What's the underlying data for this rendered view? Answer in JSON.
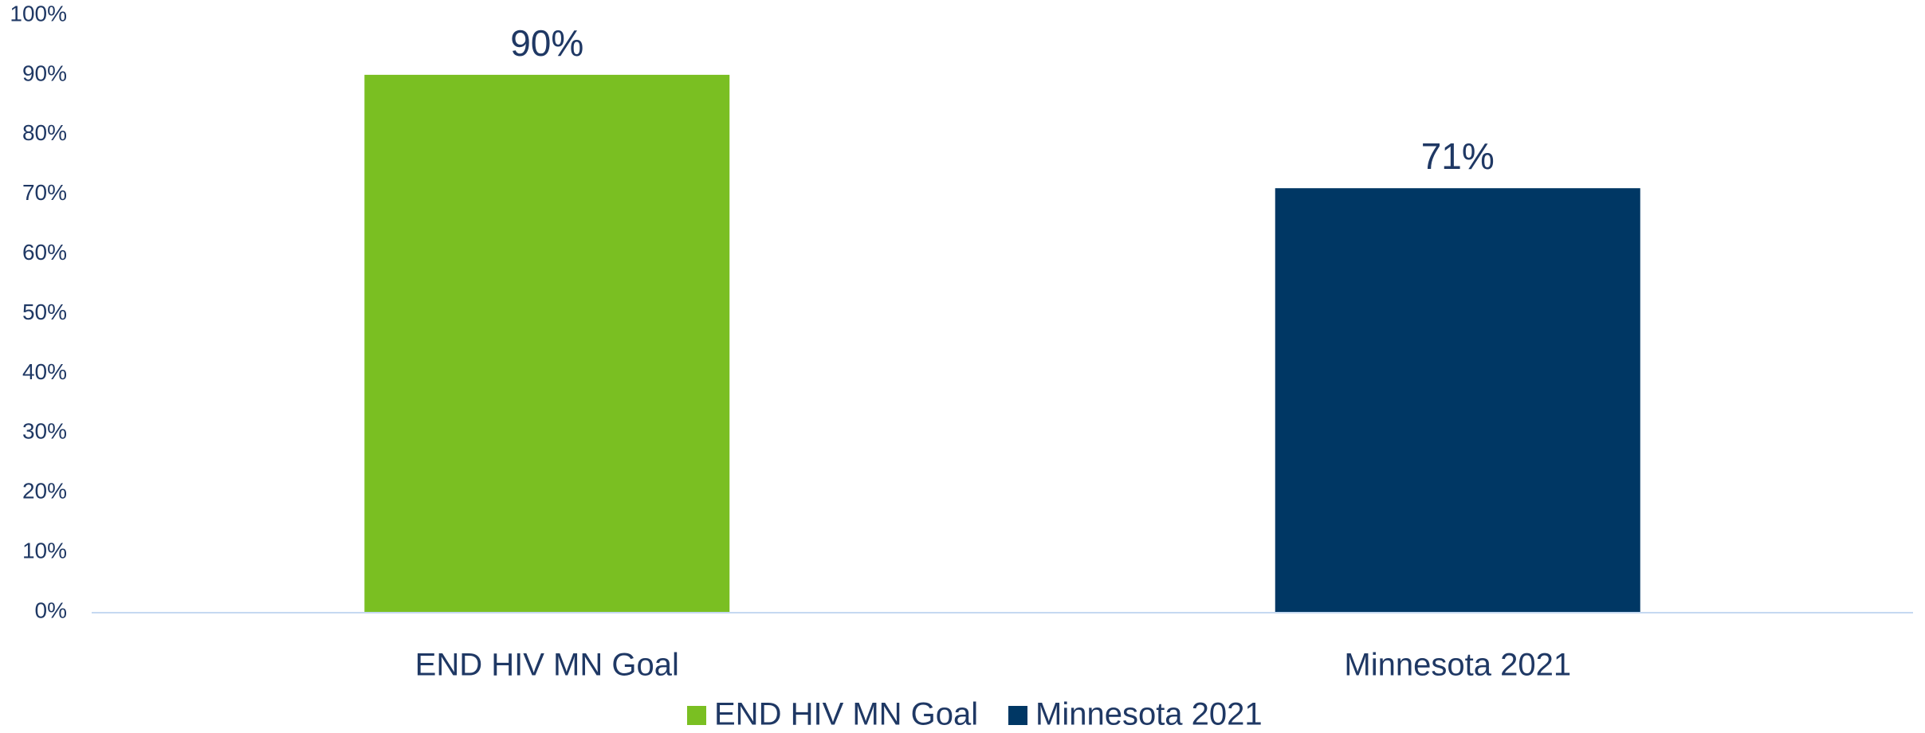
{
  "chart_data": {
    "type": "bar",
    "categories": [
      "END HIV MN Goal",
      "Minnesota 2021"
    ],
    "values": [
      90,
      71
    ],
    "value_labels": [
      "90%",
      "71%"
    ],
    "bar_colors": [
      "#7ABF22",
      "#003764"
    ],
    "title": "",
    "xlabel": "",
    "ylabel": "",
    "ylim": [
      0,
      100
    ],
    "y_ticks": [
      0,
      10,
      20,
      30,
      40,
      50,
      60,
      70,
      80,
      90,
      100
    ],
    "y_tick_labels": [
      "0%",
      "10%",
      "20%",
      "30%",
      "40%",
      "50%",
      "60%",
      "70%",
      "80%",
      "90%",
      "100%"
    ],
    "grid": false,
    "legend": {
      "position": "bottom",
      "entries": [
        {
          "label": "END HIV MN Goal",
          "color": "#7ABF22"
        },
        {
          "label": "Minnesota 2021",
          "color": "#003764"
        }
      ]
    }
  },
  "colors": {
    "text": "#1F3864",
    "axis": "#C5D9F1",
    "background": "#FFFFFF"
  }
}
